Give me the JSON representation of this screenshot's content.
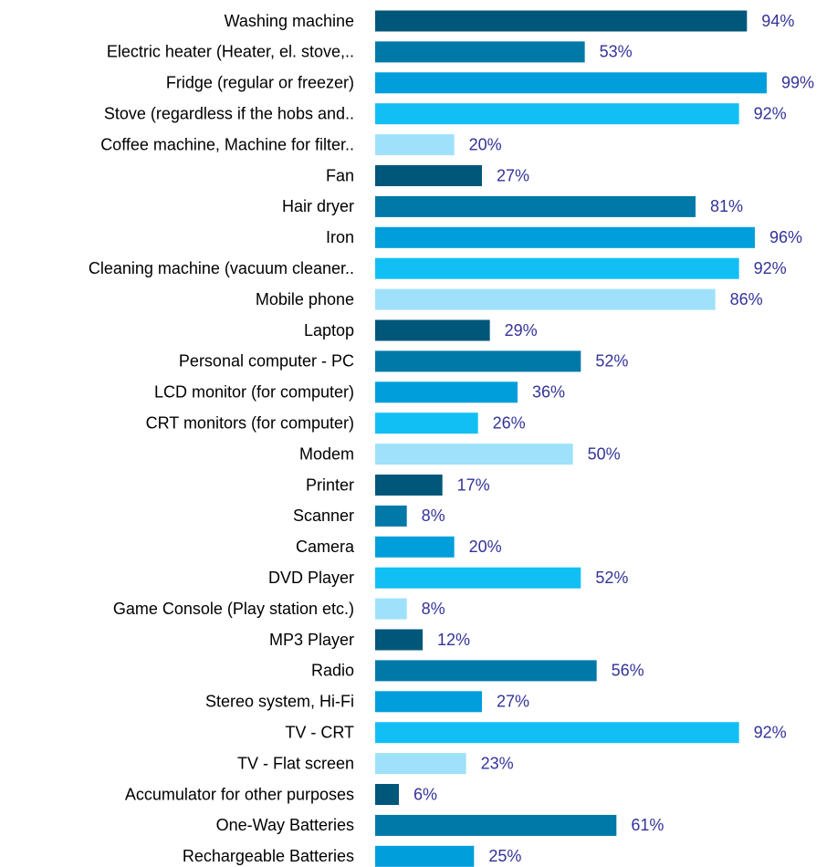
{
  "chart_data": {
    "type": "barh",
    "categories": [
      "Washing machine",
      "Electric heater (Heater, el. stove,..",
      "Fridge (regular or freezer)",
      "Stove (regardless if the hobs and..",
      "Coffee machine, Machine for filter..",
      "Fan",
      "Hair dryer",
      "Iron",
      "Cleaning machine (vacuum cleaner..",
      "Mobile phone",
      "Laptop",
      "Personal computer - PC",
      "LCD monitor (for computer)",
      "CRT monitors (for computer)",
      "Modem",
      "Printer",
      "Scanner",
      "Camera",
      "DVD Player",
      "Game Console (Play station etc.)",
      "MP3 Player",
      "Radio",
      "Stereo system, Hi-Fi",
      "TV - CRT",
      "TV - Flat screen",
      "Accumulator for other purposes",
      "One-Way Batteries",
      "Rechargeable Batteries"
    ],
    "values": [
      94,
      53,
      99,
      92,
      20,
      27,
      81,
      96,
      92,
      86,
      29,
      52,
      36,
      26,
      50,
      17,
      8,
      20,
      52,
      8,
      12,
      56,
      27,
      92,
      23,
      6,
      61,
      25
    ],
    "value_labels": [
      "94%",
      "53%",
      "99%",
      "92%",
      "20%",
      "27%",
      "81%",
      "96%",
      "92%",
      "86%",
      "29%",
      "52%",
      "36%",
      "26%",
      "50%",
      "17%",
      "8%",
      "20%",
      "52%",
      "8%",
      "12%",
      "56%",
      "27%",
      "92%",
      "23%",
      "6%",
      "61%",
      "25%"
    ],
    "colors": [
      "#00577a",
      "#0079a8",
      "#009fdb",
      "#12bff5",
      "#9fe1fa"
    ]
  }
}
